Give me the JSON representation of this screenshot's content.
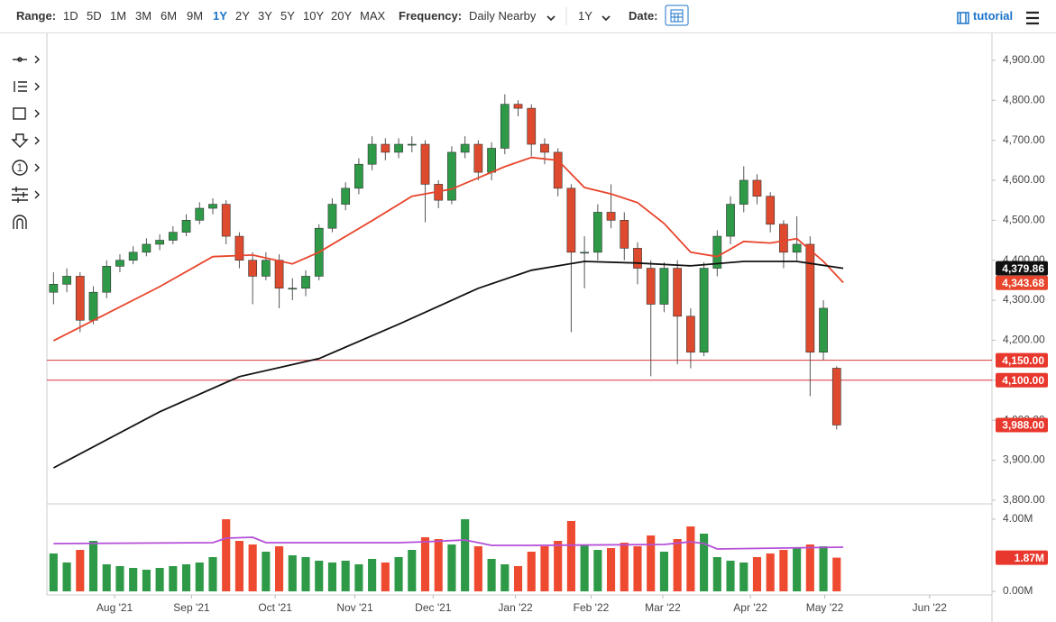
{
  "toolbar": {
    "range_label": "Range:",
    "ranges": [
      "1D",
      "5D",
      "1M",
      "3M",
      "6M",
      "9M",
      "1Y",
      "2Y",
      "3Y",
      "5Y",
      "10Y",
      "20Y",
      "MAX"
    ],
    "frequency_label": "Frequency:",
    "frequency": "Daily Nearby",
    "period": "1Y",
    "date_label": "Date:",
    "tutorial": "tutorial"
  },
  "tool_label": "1",
  "chart_data": [
    {
      "type": "candlestick",
      "up_color": "#2e9a48",
      "down_color": "#dd4a2e",
      "x": [
        0,
        1,
        2,
        3,
        4,
        5,
        6,
        7,
        8,
        9,
        10,
        11,
        12,
        13,
        14,
        15,
        16,
        17,
        18,
        19,
        20,
        21,
        22,
        23,
        24,
        25,
        26,
        27,
        28,
        29,
        30,
        31,
        32,
        33,
        34,
        35,
        36,
        37,
        38,
        39,
        40,
        41,
        42,
        43,
        44,
        45,
        46,
        47,
        48,
        49,
        50,
        51,
        52,
        53,
        54,
        55,
        56,
        57,
        58,
        59
      ],
      "open": [
        4320,
        4340,
        4360,
        4250,
        4320,
        4385,
        4400,
        4420,
        4440,
        4450,
        4470,
        4500,
        4530,
        4540,
        4460,
        4400,
        4360,
        4400,
        4330,
        4330,
        4360,
        4480,
        4540,
        4580,
        4640,
        4690,
        4670,
        4690,
        4690,
        4590,
        4550,
        4670,
        4690,
        4620,
        4680,
        4790,
        4780,
        4690,
        4670,
        4580,
        4420,
        4420,
        4520,
        4500,
        4430,
        4380,
        4290,
        4380,
        4260,
        4170,
        4380,
        4460,
        4540,
        4600,
        4560,
        4490,
        4420,
        4440,
        4170,
        4130
      ],
      "high": [
        4370,
        4380,
        4370,
        4335,
        4400,
        4415,
        4435,
        4455,
        4465,
        4485,
        4515,
        4545,
        4555,
        4550,
        4470,
        4420,
        4420,
        4415,
        4355,
        4375,
        4490,
        4555,
        4595,
        4655,
        4710,
        4705,
        4705,
        4710,
        4700,
        4600,
        4685,
        4710,
        4700,
        4695,
        4815,
        4800,
        4790,
        4705,
        4680,
        4590,
        4460,
        4540,
        4590,
        4520,
        4445,
        4400,
        4395,
        4400,
        4280,
        4395,
        4475,
        4560,
        4635,
        4615,
        4570,
        4500,
        4510,
        4460,
        4300,
        4135
      ],
      "low": [
        4290,
        4320,
        4220,
        4240,
        4305,
        4370,
        4390,
        4410,
        4425,
        4440,
        4460,
        4490,
        4515,
        4440,
        4380,
        4290,
        4350,
        4280,
        4300,
        4310,
        4350,
        4470,
        4525,
        4565,
        4625,
        4650,
        4655,
        4670,
        4495,
        4530,
        4540,
        4655,
        4600,
        4600,
        4665,
        4760,
        4660,
        4640,
        4560,
        4220,
        4330,
        4400,
        4480,
        4400,
        4340,
        4110,
        4270,
        4140,
        4130,
        4160,
        4360,
        4440,
        4520,
        4540,
        4470,
        4380,
        4400,
        4060,
        4150,
        3977
      ],
      "close": [
        4340,
        4360,
        4250,
        4320,
        4385,
        4400,
        4420,
        4440,
        4450,
        4470,
        4500,
        4530,
        4540,
        4460,
        4400,
        4360,
        4400,
        4330,
        4330,
        4360,
        4480,
        4540,
        4580,
        4640,
        4690,
        4670,
        4690,
        4690,
        4590,
        4550,
        4670,
        4690,
        4620,
        4680,
        4790,
        4780,
        4690,
        4670,
        4580,
        4420,
        4420,
        4520,
        4500,
        4430,
        4380,
        4290,
        4380,
        4260,
        4170,
        4380,
        4460,
        4540,
        4600,
        4560,
        4490,
        4420,
        4440,
        4170,
        4280,
        3988
      ],
      "series": [
        {
          "color": "#e8452c",
          "x": [
            0,
            8,
            12,
            15,
            18,
            20,
            24,
            27,
            30,
            34,
            36,
            38,
            40,
            42,
            44,
            46,
            48,
            50,
            52,
            54,
            56,
            58,
            59.5
          ],
          "values": [
            4199,
            4334,
            4409,
            4413,
            4391,
            4420,
            4499,
            4560,
            4578,
            4634,
            4657,
            4650,
            4582,
            4566,
            4544,
            4492,
            4420,
            4409,
            4447,
            4443,
            4454,
            4397,
            4344
          ]
        },
        {
          "color": "#111111",
          "x": [
            0,
            8,
            14,
            20,
            26,
            32,
            36,
            40,
            44,
            48,
            52,
            56,
            59.5
          ],
          "values": [
            3881,
            4021,
            4109,
            4154,
            4240,
            4330,
            4375,
            4397,
            4393,
            4386,
            4397,
            4397,
            4380
          ]
        }
      ],
      "hlines": [
        4150,
        4100
      ],
      "hline_color": "#d9363e",
      "badges": [
        {
          "value": 4379.86,
          "label": "4,379.86",
          "color": "#111111"
        },
        {
          "value": 4343.68,
          "label": "4,343.68",
          "color": "#e8452c"
        },
        {
          "value": 4150,
          "label": "4,150.00",
          "color": "#e8372c"
        },
        {
          "value": 4100,
          "label": "4,100.00",
          "color": "#e8372c"
        },
        {
          "value": 3988,
          "label": "3,988.00",
          "color": "#e8372c"
        }
      ],
      "xlim": [
        -0.5,
        70.7
      ],
      "ylim": [
        3793,
        4920
      ],
      "yticks": [
        {
          "value": 3800,
          "label": "3,800.00"
        },
        {
          "value": 3900,
          "label": "3,900.00"
        },
        {
          "value": 4000,
          "label": "4,000.00"
        },
        {
          "value": 4100,
          "label": "4,100.00"
        },
        {
          "value": 4200,
          "label": "4,200.00"
        },
        {
          "value": 4300,
          "label": "4,300.00"
        },
        {
          "value": 4400,
          "label": "4,400.00"
        },
        {
          "value": 4500,
          "label": "4,500.00"
        },
        {
          "value": 4600,
          "label": "4,600.00"
        },
        {
          "value": 4700,
          "label": "4,700.00"
        },
        {
          "value": 4800,
          "label": "4,800.00"
        },
        {
          "value": 4900,
          "label": "4,900.00"
        }
      ]
    },
    {
      "type": "bar",
      "up_color": "#2e9a48",
      "down_color": "#ee4a30",
      "x": [
        0,
        1,
        2,
        3,
        4,
        5,
        6,
        7,
        8,
        9,
        10,
        11,
        12,
        13,
        14,
        15,
        16,
        17,
        18,
        19,
        20,
        21,
        22,
        23,
        24,
        25,
        26,
        27,
        28,
        29,
        30,
        31,
        32,
        33,
        34,
        35,
        36,
        37,
        38,
        39,
        40,
        41,
        42,
        43,
        44,
        45,
        46,
        47,
        48,
        49,
        50,
        51,
        52,
        53,
        54,
        55,
        56,
        57,
        58,
        59
      ],
      "values": [
        2.1,
        1.6,
        2.3,
        2.8,
        1.5,
        1.4,
        1.3,
        1.2,
        1.3,
        1.4,
        1.5,
        1.6,
        1.9,
        4.0,
        2.8,
        2.6,
        2.2,
        2.5,
        2.0,
        1.9,
        1.7,
        1.6,
        1.7,
        1.5,
        1.8,
        1.6,
        1.9,
        2.3,
        3.0,
        2.9,
        2.6,
        4.0,
        2.5,
        1.8,
        1.5,
        1.4,
        2.2,
        2.5,
        2.8,
        3.9,
        2.6,
        2.3,
        2.4,
        2.7,
        2.5,
        3.1,
        2.2,
        2.9,
        3.6,
        3.2,
        1.9,
        1.7,
        1.6,
        1.9,
        2.1,
        2.3,
        2.4,
        2.6,
        2.5,
        1.87
      ],
      "series": [
        {
          "color": "#b54fd8",
          "x": [
            0,
            12,
            13,
            15,
            16,
            26,
            28,
            31,
            33,
            36,
            46,
            48,
            49,
            50,
            59.5
          ],
          "values": [
            2.65,
            2.7,
            2.95,
            3.0,
            2.7,
            2.7,
            2.75,
            2.85,
            2.55,
            2.55,
            2.6,
            2.75,
            2.65,
            2.35,
            2.45
          ]
        }
      ],
      "badges": [
        {
          "value": 1.87,
          "label": "1.87M",
          "color": "#e8372c"
        }
      ],
      "xlim": [
        -0.5,
        70.7
      ],
      "ylim": [
        -0.2,
        4.7
      ],
      "yticks": [
        {
          "value": 0,
          "label": "0.00M"
        },
        {
          "value": 4,
          "label": "4.00M"
        }
      ],
      "xticks": [
        {
          "value": 4.6,
          "label": "Aug '21"
        },
        {
          "value": 10.4,
          "label": "Sep '21"
        },
        {
          "value": 16.7,
          "label": "Oct '21"
        },
        {
          "value": 22.7,
          "label": "Nov '21"
        },
        {
          "value": 28.6,
          "label": "Dec '21"
        },
        {
          "value": 34.8,
          "label": "Jan '22"
        },
        {
          "value": 40.5,
          "label": "Feb '22"
        },
        {
          "value": 45.9,
          "label": "Mar '22"
        },
        {
          "value": 52.5,
          "label": "Apr '22"
        },
        {
          "value": 58.1,
          "label": "May '22"
        },
        {
          "value": 66.0,
          "label": "Jun '22"
        }
      ]
    }
  ]
}
